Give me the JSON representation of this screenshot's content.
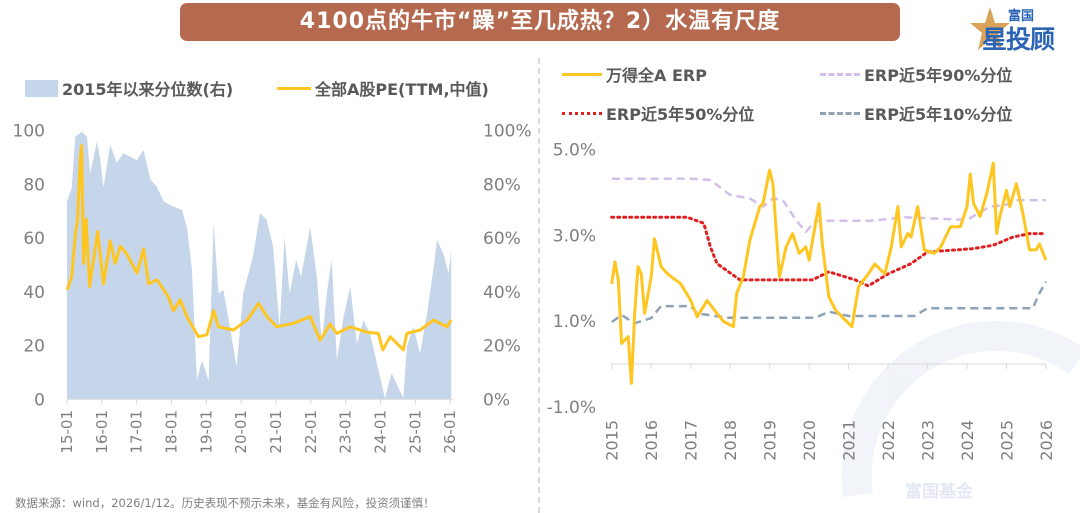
{
  "title": "4100点的牛市“躁”至几成热？2）水温有尺度",
  "logo": {
    "top": "富国",
    "bottom": "星投顾"
  },
  "watermark": "富国基金",
  "footer": "数据来源：wind，2026/1/12。历史表现不预示未来，基金有风险，投资须谨慎！",
  "colors": {
    "banner": "#b5694e",
    "area": "#c5d6ea",
    "pe": "#ffc622",
    "erp": "#ffc622",
    "p90": "#d4bfe8",
    "p50": "#e02020",
    "p10": "#8ea2b8"
  },
  "chart_data": [
    {
      "type": "line+area",
      "legend": [
        "2015年以来分位数(右)",
        "全部A股PE(TTM,中值)"
      ],
      "legend_position": "top",
      "grid": false,
      "y_left": {
        "range": [
          0,
          100
        ],
        "ticks": [
          "0",
          "20",
          "40",
          "60",
          "80",
          "100"
        ]
      },
      "y_right": {
        "range": [
          0,
          1
        ],
        "ticks": [
          "0%",
          "20%",
          "40%",
          "60%",
          "80%",
          "100%"
        ]
      },
      "x_ticks": [
        "15-01",
        "16-01",
        "17-01",
        "18-01",
        "19-01",
        "20-01",
        "21-01",
        "22-01",
        "23-01",
        "24-01",
        "25-01",
        "26-01"
      ],
      "series": [
        {
          "name": "2015年以来分位数(右)",
          "type": "area",
          "axis": "right",
          "x": [
            "2015-01-01",
            "2015-02-20",
            "2015-03-27",
            "2015-06-05",
            "2015-07-27",
            "2015-08-31",
            "2015-11-10",
            "2015-12-15",
            "2016-01-19",
            "2016-03-28",
            "2016-06-06",
            "2016-08-15",
            "2017-01-04",
            "2017-03-13",
            "2017-05-22",
            "2017-08-01",
            "2017-10-10",
            "2018-01-22",
            "2018-04-20",
            "2018-06-10",
            "2018-08-01",
            "2018-09-25",
            "2018-11-15",
            "2019-01-25",
            "2019-03-16",
            "2019-05-07",
            "2019-06-28",
            "2019-09-05",
            "2019-11-14",
            "2020-01-22",
            "2020-05-05",
            "2020-07-15",
            "2020-09-22",
            "2020-12-01",
            "2021-02-08",
            "2021-03-30",
            "2021-05-22",
            "2021-07-30",
            "2021-09-20",
            "2021-12-25",
            "2022-03-04",
            "2022-04-25",
            "2022-06-16",
            "2022-08-07",
            "2022-10-01",
            "2022-12-10",
            "2023-02-18",
            "2023-04-28",
            "2023-07-06",
            "2023-09-13",
            "2023-12-26",
            "2024-02-16",
            "2024-04-26",
            "2024-08-28",
            "2024-10-03",
            "2024-12-12",
            "2025-02-21",
            "2025-05-01",
            "2025-07-10",
            "2025-08-15",
            "2025-10-24",
            "2025-12-15",
            "2026-01-12"
          ],
          "values": [
            73.7,
            78.7,
            97.8,
            99.6,
            97.8,
            84,
            95.9,
            89,
            79,
            94.7,
            88,
            91.6,
            89,
            92.8,
            81.9,
            79,
            73.7,
            71.7,
            70.5,
            64,
            49,
            7.2,
            14.6,
            7,
            65.5,
            39.5,
            40.7,
            27,
            12,
            39.5,
            53.3,
            69.2,
            67,
            57,
            27,
            60.5,
            39.5,
            52,
            45.6,
            64,
            45.6,
            20.8,
            39.5,
            52,
            14.6,
            30.8,
            42,
            20.8,
            29.5,
            24.5,
            8.4,
            0.4,
            9.7,
            0.4,
            19.6,
            27,
            17,
            31.7,
            49,
            59.3,
            54,
            46.8,
            56
          ],
          "unit": "%"
        },
        {
          "name": "全部A股PE(TTM,中值)",
          "type": "line",
          "axis": "left",
          "x": [
            "2015-01-01",
            "2015-02-20",
            "2015-03-27",
            "2015-04-20",
            "2015-05-18",
            "2015-06-02",
            "2015-06-23",
            "2015-07-20",
            "2015-08-25",
            "2015-10-06",
            "2015-11-17",
            "2016-01-19",
            "2016-03-28",
            "2016-05-19",
            "2016-07-12",
            "2016-09-20",
            "2017-01-04",
            "2017-03-13",
            "2017-05-04",
            "2017-08-01",
            "2017-12-01",
            "2018-01-22",
            "2018-04-01",
            "2018-06-10",
            "2018-10-10",
            "2019-01-07",
            "2019-03-16",
            "2019-05-07",
            "2019-10-12",
            "2020-03-01",
            "2020-07-01",
            "2020-09-28",
            "2021-01-10",
            "2021-07-03",
            "2021-12-25",
            "2022-04-07",
            "2022-07-21",
            "2022-10-01",
            "2023-02-18",
            "2023-08-10",
            "2023-12-10",
            "2024-01-25",
            "2024-04-12",
            "2024-08-28",
            "2024-10-03",
            "2025-02-21",
            "2025-07-10",
            "2025-11-27",
            "2026-01-12"
          ],
          "values": [
            40.7,
            45.6,
            61,
            67,
            89,
            94.5,
            50.6,
            67,
            42,
            52,
            62.5,
            43,
            59,
            50.6,
            57,
            54,
            47,
            56,
            43,
            44.5,
            38,
            33,
            37,
            30.8,
            23.3,
            24,
            33,
            27,
            25.8,
            29.5,
            35.7,
            30.8,
            27,
            28.3,
            30.8,
            22,
            28,
            24.5,
            27,
            25,
            24.5,
            18.4,
            23.3,
            18.4,
            24.5,
            25.8,
            29.5,
            27,
            29.5
          ]
        }
      ]
    },
    {
      "type": "line",
      "legend": [
        "万得全A ERP",
        "ERP近5年90%分位",
        "ERP近5年50%分位",
        "ERP近5年10%分位"
      ],
      "legend_position": "top",
      "grid": false,
      "y": {
        "range": [
          -1.0,
          5.0
        ],
        "ticks": [
          "-1.0%",
          "1.0%",
          "3.0%",
          "5.0%"
        ],
        "unit": "%"
      },
      "x_ticks": [
        "2015",
        "2016",
        "2017",
        "2018",
        "2019",
        "2020",
        "2021",
        "2022",
        "2023",
        "2024",
        "2025",
        "2026"
      ],
      "series": [
        {
          "name": "万得全A ERP",
          "style": "solid",
          "x": [
            "2015-01",
            "2015-02",
            "2015-03",
            "2015-04",
            "2015-06",
            "2015-07",
            "2015-08",
            "2015-09",
            "2015-10",
            "2015-11",
            "2016-01",
            "2016-02",
            "2016-04",
            "2016-06",
            "2016-10",
            "2017-01",
            "2017-03",
            "2017-06",
            "2017-09",
            "2017-11",
            "2018-02",
            "2018-03",
            "2018-05",
            "2018-07",
            "2018-10",
            "2018-11",
            "2019-01",
            "2019-02",
            "2019-04",
            "2019-06",
            "2019-08",
            "2019-10",
            "2019-12",
            "2020-01",
            "2020-04",
            "2020-05",
            "2020-07",
            "2020-09",
            "2020-11",
            "2021-02",
            "2021-04",
            "2021-07",
            "2021-09",
            "2021-12",
            "2022-02",
            "2022-04",
            "2022-05",
            "2022-07",
            "2022-08",
            "2022-10",
            "2022-12",
            "2023-03",
            "2023-05",
            "2023-08",
            "2023-11",
            "2024-01",
            "2024-02",
            "2024-03",
            "2024-05",
            "2024-07",
            "2024-09",
            "2024-10",
            "2024-11",
            "2025-01",
            "2025-02",
            "2025-04",
            "2025-06",
            "2025-08",
            "2025-10",
            "2025-11",
            "2026-01"
          ],
          "values": [
            1.87,
            2.38,
            1.96,
            0.48,
            0.64,
            -0.45,
            1.18,
            2.27,
            2.1,
            1.18,
            2.03,
            2.92,
            2.27,
            2.1,
            1.87,
            1.48,
            1.1,
            1.48,
            1.18,
            0.99,
            0.87,
            1.65,
            2.03,
            2.89,
            3.67,
            3.74,
            4.52,
            4.2,
            2.03,
            2.73,
            3.04,
            2.58,
            2.73,
            2.42,
            3.74,
            2.8,
            1.57,
            1.26,
            1.1,
            0.87,
            1.8,
            2.1,
            2.33,
            2.1,
            2.73,
            3.67,
            2.73,
            3.04,
            2.96,
            3.67,
            2.66,
            2.58,
            2.73,
            3.2,
            3.2,
            3.67,
            4.43,
            3.74,
            3.44,
            3.98,
            4.68,
            3.04,
            3.44,
            4.05,
            3.67,
            4.2,
            3.5,
            2.66,
            2.66,
            2.8,
            2.42
          ]
        },
        {
          "name": "ERP近5年90%分位",
          "style": "dashed",
          "x": [
            "2015-01",
            "2017-01",
            "2017-07",
            "2018-01",
            "2018-07",
            "2018-11",
            "2019-02",
            "2019-05",
            "2019-09",
            "2019-12",
            "2020-03",
            "2021-08",
            "2022-06",
            "2024-01",
            "2024-08",
            "2025-01",
            "2025-04",
            "2026-01"
          ],
          "values": [
            4.32,
            4.32,
            4.29,
            3.94,
            3.86,
            3.67,
            3.86,
            3.82,
            3.36,
            3.08,
            3.34,
            3.34,
            3.42,
            3.36,
            3.67,
            3.71,
            3.82,
            3.82
          ]
        },
        {
          "name": "ERP近5年50%分位",
          "style": "dotted",
          "x": [
            "2015-01",
            "2016-12",
            "2017-05",
            "2017-07",
            "2017-09",
            "2018-04",
            "2020-02",
            "2020-07",
            "2021-03",
            "2021-07",
            "2022-01",
            "2022-08",
            "2023-01",
            "2024-03",
            "2024-09",
            "2025-03",
            "2025-08",
            "2026-01"
          ],
          "values": [
            3.42,
            3.42,
            3.28,
            2.73,
            2.34,
            1.96,
            1.96,
            2.15,
            1.96,
            1.82,
            2.1,
            2.34,
            2.61,
            2.69,
            2.77,
            2.96,
            3.04,
            3.04
          ]
        },
        {
          "name": "ERP近5年10%分位",
          "style": "dashed",
          "x": [
            "2015-01",
            "2015-04",
            "2015-08",
            "2016-01",
            "2016-04",
            "2017-01",
            "2017-03",
            "2017-12",
            "2020-03",
            "2020-07",
            "2021-01",
            "2022-09",
            "2023-01",
            "2025-09",
            "2025-11",
            "2026-01"
          ],
          "values": [
            0.98,
            1.14,
            0.95,
            1.07,
            1.35,
            1.35,
            1.18,
            1.08,
            1.08,
            1.22,
            1.12,
            1.12,
            1.3,
            1.3,
            1.65,
            1.92
          ]
        }
      ]
    }
  ]
}
